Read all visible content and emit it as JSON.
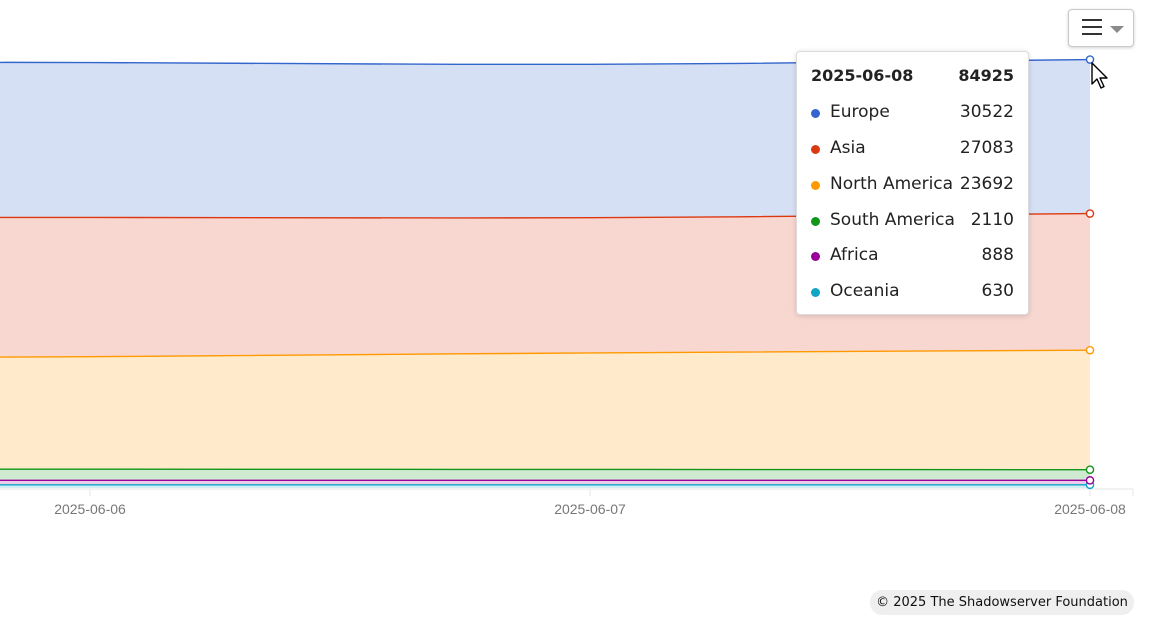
{
  "chart_data": {
    "type": "area",
    "stacked": true,
    "x": [
      "2025-06-06",
      "2025-06-07",
      "2025-06-08"
    ],
    "x_tick_labels": [
      "2025-06-06",
      "2025-06-07",
      "2025-06-08"
    ],
    "series": [
      {
        "name": "Oceania",
        "color": "#0fa5c4",
        "values": [
          630,
          630,
          630
        ]
      },
      {
        "name": "Africa",
        "color": "#990099",
        "values": [
          900,
          895,
          888
        ]
      },
      {
        "name": "South America",
        "color": "#109618",
        "values": [
          2200,
          2150,
          2110
        ]
      },
      {
        "name": "North America",
        "color": "#ff9900",
        "values": [
          22300,
          23100,
          23692
        ]
      },
      {
        "name": "Asia",
        "color": "#dc3912",
        "values": [
          27600,
          26800,
          27083
        ]
      },
      {
        "name": "Europe",
        "color": "#3366cc",
        "values": [
          30700,
          30400,
          30522
        ]
      }
    ],
    "grid": false,
    "legend": "none"
  },
  "tooltip": {
    "date": "2025-06-08",
    "total": "84925",
    "rows": [
      {
        "name": "Europe",
        "value": "30522",
        "color": "#3366cc"
      },
      {
        "name": "Asia",
        "value": "27083",
        "color": "#dc3912"
      },
      {
        "name": "North America",
        "value": "23692",
        "color": "#ff9900"
      },
      {
        "name": "South America",
        "value": "2110",
        "color": "#109618"
      },
      {
        "name": "Africa",
        "value": "888",
        "color": "#990099"
      },
      {
        "name": "Oceania",
        "value": "630",
        "color": "#0fa5c4"
      }
    ]
  },
  "menu": {
    "icon": "hamburger-menu-icon"
  },
  "credit": "© 2025 The Shadowserver Foundation"
}
